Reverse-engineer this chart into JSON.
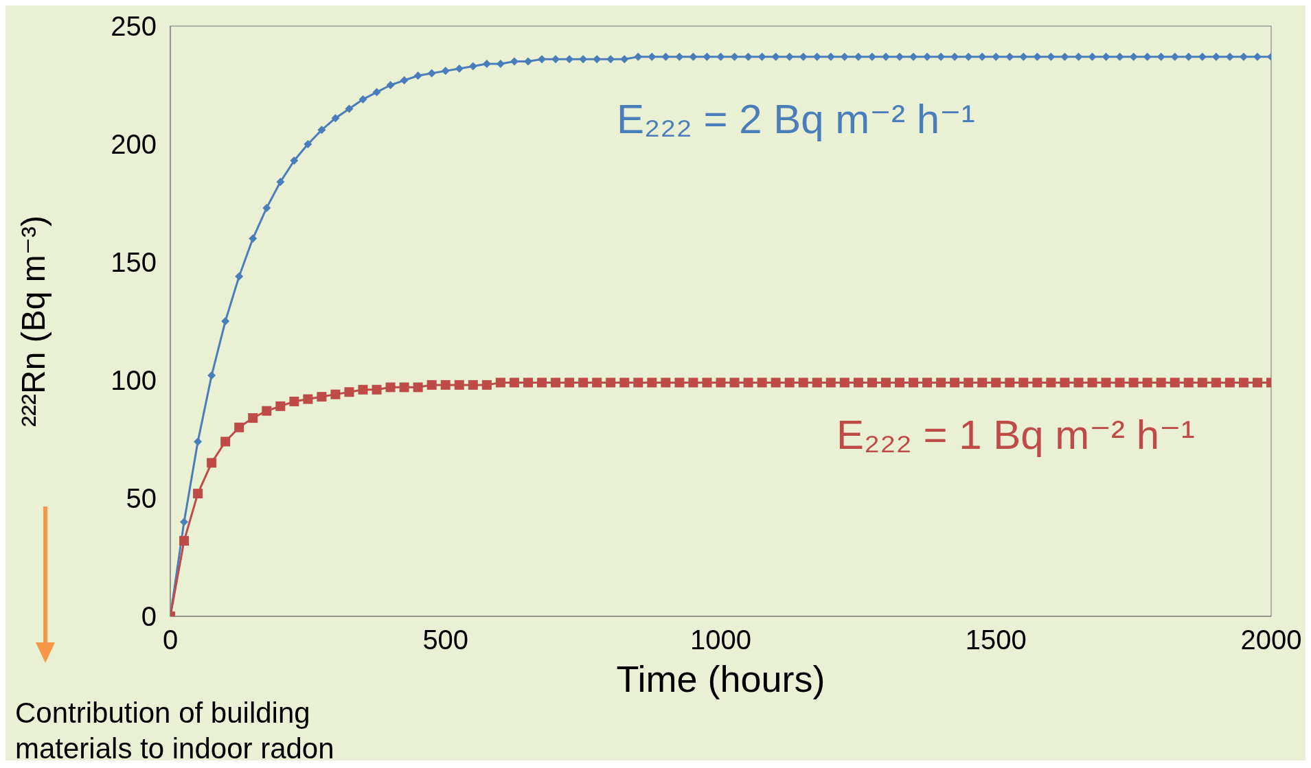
{
  "chart_data": {
    "type": "line",
    "xlabel": "Time (hours)",
    "ylabel": "²²²Rn (Bq m⁻³)",
    "x": [
      0,
      25,
      50,
      75,
      100,
      125,
      150,
      175,
      200,
      225,
      250,
      275,
      300,
      325,
      350,
      375,
      400,
      425,
      450,
      475,
      500,
      525,
      550,
      575,
      600,
      625,
      650,
      675,
      700,
      725,
      750,
      775,
      800,
      825,
      850,
      875,
      900,
      925,
      950,
      975,
      1000,
      1025,
      1050,
      1075,
      1100,
      1125,
      1150,
      1175,
      1200,
      1225,
      1250,
      1275,
      1300,
      1325,
      1350,
      1375,
      1400,
      1425,
      1450,
      1475,
      1500,
      1525,
      1550,
      1575,
      1600,
      1625,
      1650,
      1675,
      1700,
      1725,
      1750,
      1775,
      1800,
      1825,
      1850,
      1875,
      1900,
      1925,
      1950,
      1975,
      2000
    ],
    "series": [
      {
        "name": "E₂₂₂ = 2 Bq m⁻² h⁻¹",
        "color": "#4a7ebb",
        "marker": "diamond",
        "values": [
          0,
          40,
          74,
          102,
          125,
          144,
          160,
          173,
          184,
          193,
          200,
          206,
          211,
          215,
          219,
          222,
          225,
          227,
          229,
          230,
          231,
          232,
          233,
          234,
          234,
          235,
          235,
          236,
          236,
          236,
          236,
          236,
          236,
          236,
          237,
          237,
          237,
          237,
          237,
          237,
          237,
          237,
          237,
          237,
          237,
          237,
          237,
          237,
          237,
          237,
          237,
          237,
          237,
          237,
          237,
          237,
          237,
          237,
          237,
          237,
          237,
          237,
          237,
          237,
          237,
          237,
          237,
          237,
          237,
          237,
          237,
          237,
          237,
          237,
          237,
          237,
          237,
          237,
          237,
          237,
          237
        ]
      },
      {
        "name": "E₂₂₂ = 1 Bq m⁻² h⁻¹",
        "color": "#be4b48",
        "marker": "square",
        "values": [
          0,
          32,
          52,
          65,
          74,
          80,
          84,
          87,
          89,
          91,
          92,
          93,
          94,
          95,
          96,
          96,
          97,
          97,
          97,
          98,
          98,
          98,
          98,
          98,
          99,
          99,
          99,
          99,
          99,
          99,
          99,
          99,
          99,
          99,
          99,
          99,
          99,
          99,
          99,
          99,
          99,
          99,
          99,
          99,
          99,
          99,
          99,
          99,
          99,
          99,
          99,
          99,
          99,
          99,
          99,
          99,
          99,
          99,
          99,
          99,
          99,
          99,
          99,
          99,
          99,
          99,
          99,
          99,
          99,
          99,
          99,
          99,
          99,
          99,
          99,
          99,
          99,
          99,
          99,
          99,
          99
        ]
      }
    ],
    "xlim": [
      0,
      2000
    ],
    "xticks": [
      0,
      500,
      1000,
      1500,
      2000
    ],
    "ylim": [
      0,
      250
    ],
    "yticks": [
      0,
      50,
      100,
      150,
      200,
      250
    ],
    "legend": false,
    "line_style": "solid",
    "annotations": [
      "Contribution of building materials to indoor radon"
    ]
  }
}
